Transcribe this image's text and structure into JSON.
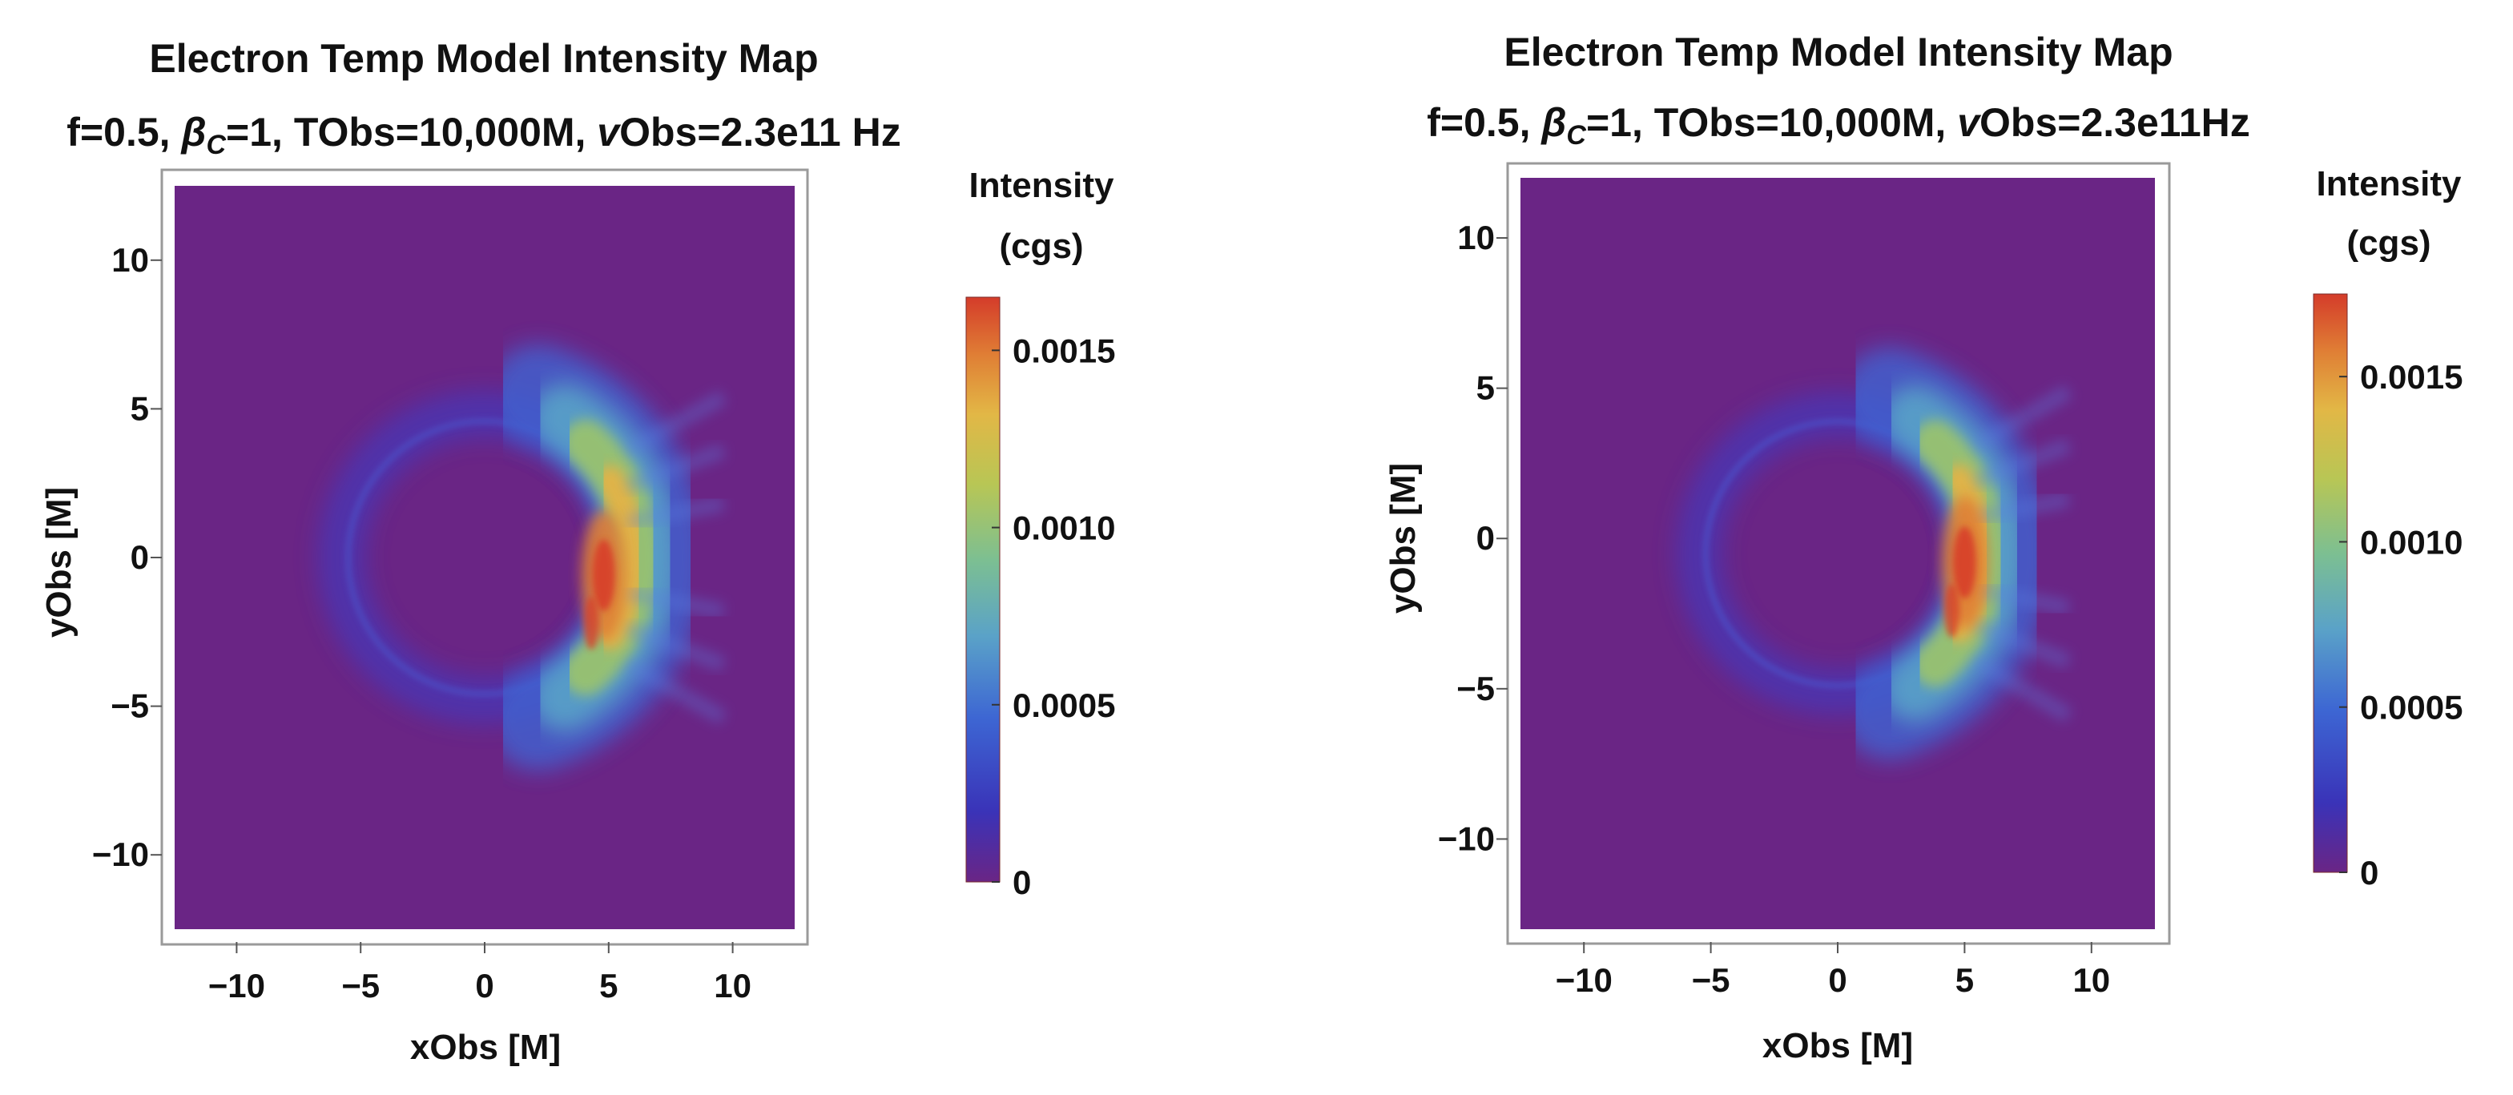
{
  "chart_data": [
    {
      "type": "heatmap",
      "title": "Electron Temp Model Intensity Map",
      "subtitle_parts": [
        {
          "t": "f=0.5, ",
          "style": "normal"
        },
        {
          "t": "β",
          "style": "italic"
        },
        {
          "t": "C",
          "style": "sub"
        },
        {
          "t": "=1, TObs=10,000M, ",
          "style": "normal"
        },
        {
          "t": "v",
          "style": "italic"
        },
        {
          "t": "Obs=2.3e11 Hz",
          "style": "normal"
        }
      ],
      "xlabel": "xObs [M]",
      "ylabel": "yObs [M]",
      "xlim": [
        -12.5,
        12.5
      ],
      "ylim": [
        -12.5,
        12.5
      ],
      "xticks": [
        -10,
        -5,
        0,
        5,
        10
      ],
      "yticks": [
        -10,
        -5,
        0,
        5,
        10
      ],
      "xtick_labels": [
        "−10",
        "−5",
        "0",
        "5",
        "10"
      ],
      "ytick_labels": [
        "−10",
        "−5",
        "0",
        "5",
        "10"
      ],
      "colorbar": {
        "label_line1": "Intensity",
        "label_line2": "(cgs)",
        "range": [
          0,
          0.00165
        ],
        "ticks": [
          0,
          0.0005,
          0.001,
          0.0015
        ],
        "tick_labels": [
          "0",
          "0.0005",
          "0.0010",
          "0.0015"
        ]
      },
      "features": {
        "ring_center": [
          0.0,
          0.0
        ],
        "ring_radius": 5.5,
        "peak_location": [
          4.8,
          -0.6
        ],
        "peak_intensity": 0.0016
      }
    },
    {
      "type": "heatmap",
      "title": "Electron Temp Model Intensity Map",
      "subtitle_parts": [
        {
          "t": "f=0.5, ",
          "style": "normal"
        },
        {
          "t": "β",
          "style": "italic"
        },
        {
          "t": "C",
          "style": "sub"
        },
        {
          "t": "=1, TObs=10,000M, ",
          "style": "normal"
        },
        {
          "t": "v",
          "style": "italic"
        },
        {
          "t": "Obs=2.3e11Hz",
          "style": "normal"
        }
      ],
      "xlabel": "xObs [M]",
      "ylabel": "yObs [M]",
      "xlim": [
        -12.5,
        12.5
      ],
      "ylim": [
        -13.0,
        12.0
      ],
      "xticks": [
        -10,
        -5,
        0,
        5,
        10
      ],
      "yticks": [
        -10,
        -5,
        0,
        5,
        10
      ],
      "xtick_labels": [
        "−10",
        "−5",
        "0",
        "5",
        "10"
      ],
      "ytick_labels": [
        "−10",
        "−5",
        "0",
        "5",
        "10"
      ],
      "colorbar": {
        "label_line1": "Intensity",
        "label_line2": "(cgs)",
        "range": [
          0,
          0.00175
        ],
        "ticks": [
          0,
          0.0005,
          0.001,
          0.0015
        ],
        "tick_labels": [
          "0",
          "0.0005",
          "0.0010",
          "0.0015"
        ]
      },
      "features": {
        "ring_center": [
          0.0,
          -0.5
        ],
        "ring_radius": 5.2,
        "peak_location": [
          5.0,
          -0.8
        ],
        "peak_intensity": 0.0017
      }
    }
  ],
  "colors": {
    "background_low": "#6a2585",
    "low_blue": "#3a3dc8",
    "mid_cyan": "#5aa7c8",
    "mid_green": "#9cc46a",
    "high_yellow": "#e3b346",
    "peak_red": "#d8432b",
    "frame": "#9a9a9a"
  }
}
